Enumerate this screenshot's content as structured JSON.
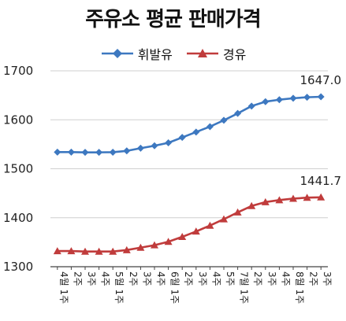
{
  "chart_data": {
    "type": "line",
    "title": "주유소 평균 판매가격",
    "x": [
      "4월 1주",
      "2주",
      "3주",
      "4주",
      "5월 1주",
      "2주",
      "3주",
      "4주",
      "6월 1주",
      "2주",
      "3주",
      "4주",
      "5주",
      "7월 1주",
      "2주",
      "3주",
      "4주",
      "8월 1주",
      "2주",
      "3주"
    ],
    "series": [
      {
        "name": "휘발유",
        "color": "#3d78c0",
        "marker": "diamond",
        "values": [
          1534,
          1534,
          1533.5,
          1533.5,
          1533.8,
          1536.5,
          1542,
          1547,
          1553,
          1564,
          1575,
          1586,
          1599,
          1613,
          1628,
          1637,
          1641,
          1644,
          1646,
          1647.0
        ]
      },
      {
        "name": "경유",
        "color": "#c03c3c",
        "marker": "triangle",
        "values": [
          1332,
          1332,
          1331,
          1331,
          1331,
          1334,
          1339,
          1344,
          1351,
          1361,
          1372,
          1384,
          1397,
          1411,
          1424,
          1432,
          1436,
          1439,
          1441,
          1441.7
        ]
      }
    ],
    "data_labels": [
      "1647.0",
      "1441.7"
    ],
    "ylim": [
      1300,
      1700
    ],
    "yticks": [
      "1700",
      "1600",
      "1500",
      "1400",
      "1300"
    ],
    "xlabel": "",
    "ylabel": "",
    "grid": "horizontal",
    "legend_position": "top"
  }
}
